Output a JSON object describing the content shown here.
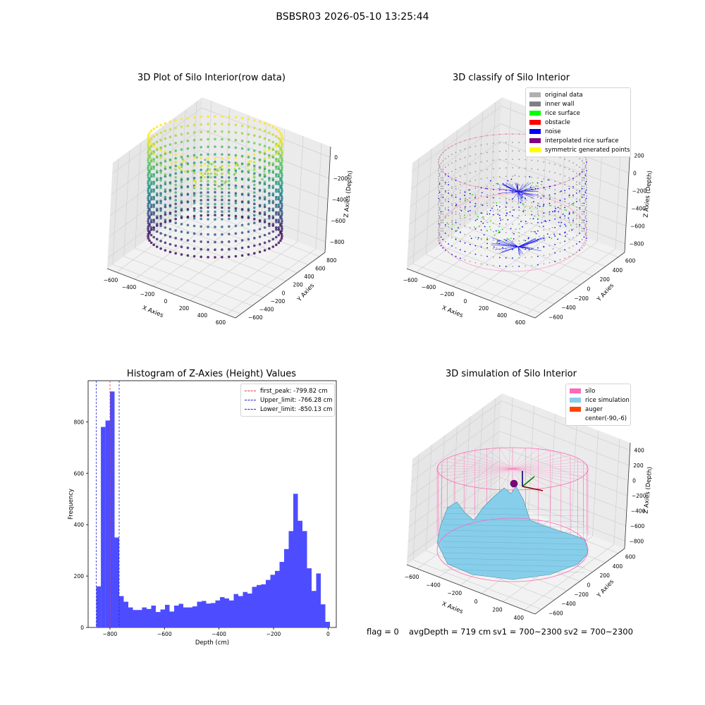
{
  "suptitle": "BSBSR03 2026-05-10 13:25:44",
  "status": {
    "flag": "flag = 0",
    "avg_depth": "avgDepth = 719 cm",
    "sv1": "sv1 = 700~2300",
    "sv2": "sv2 = 700~2300"
  },
  "colors": {
    "histogram_bar": "#4d4dff",
    "peak_line": "#e23c3c",
    "limit_line": "#2222cc",
    "silo": "#ff69b4",
    "rice_simulation": "#87ceeb",
    "auger": "#ff4500"
  },
  "chart_data": [
    {
      "type": "scatter",
      "title": "3D Plot of Silo Interior(row data)",
      "xlabel": "X Axies",
      "ylabel": "Y Axies",
      "zlabel": "Z Axies (Depth)",
      "x_ticks": [
        "−600",
        "−400",
        "−200",
        "0",
        "200",
        "400",
        "600"
      ],
      "y_ticks": [
        "−600",
        "−400",
        "−200",
        "0",
        "200",
        "400",
        "600",
        "800"
      ],
      "z_ticks": [
        "0",
        "−200",
        "−400",
        "−600",
        "−800"
      ],
      "colormap": "viridis"
    },
    {
      "type": "scatter",
      "title": "3D classify of Silo Interior",
      "xlabel": "X Axies",
      "ylabel": "Y Axies",
      "zlabel": "Z Axies (Depth)",
      "x_ticks": [
        "−600",
        "−400",
        "−200",
        "0",
        "200",
        "400",
        "600"
      ],
      "y_ticks": [
        "−600",
        "−400",
        "−200",
        "0",
        "200",
        "400",
        "600"
      ],
      "z_ticks": [
        "200",
        "0",
        "−200",
        "−400",
        "−600",
        "−800"
      ],
      "legend_placement": "top-right",
      "legend": [
        {
          "label": "original data",
          "color": "#b0b0b0"
        },
        {
          "label": "inner wall",
          "color": "#808080"
        },
        {
          "label": "rice surface",
          "color": "#00ff00"
        },
        {
          "label": "obstacle",
          "color": "#ff0000"
        },
        {
          "label": "noise",
          "color": "#0000ff"
        },
        {
          "label": "interpolated rice surface",
          "color": "#800080"
        },
        {
          "label": "symmetric generated points",
          "color": "#ffff00"
        }
      ]
    },
    {
      "type": "bar",
      "title": "Histogram of Z-Axies (Height) Values",
      "xlabel": "Depth (cm)",
      "ylabel": "Frequency",
      "xlim": [
        -880,
        30
      ],
      "ylim": [
        0,
        960
      ],
      "x_ticks": [
        -800,
        -600,
        -400,
        -200,
        0
      ],
      "x_tick_labels": [
        "−800",
        "−600",
        "−400",
        "−200",
        "0"
      ],
      "y_ticks": [
        0,
        200,
        400,
        600,
        800
      ],
      "bin_start": -850.13,
      "bin_width": 16.8,
      "values": [
        160,
        780,
        805,
        918,
        350,
        122,
        100,
        78,
        68,
        68,
        78,
        72,
        85,
        60,
        70,
        88,
        62,
        85,
        92,
        78,
        78,
        82,
        100,
        103,
        93,
        95,
        105,
        118,
        113,
        105,
        130,
        122,
        138,
        132,
        158,
        165,
        168,
        185,
        205,
        220,
        255,
        305,
        375,
        520,
        415,
        375,
        230,
        142,
        210,
        90,
        22
      ],
      "lines": [
        {
          "label": "first_peak: -799.82 cm",
          "x": -799.82,
          "color": "#e23c3c"
        },
        {
          "label": "Upper_limit: -766.28 cm",
          "x": -766.28,
          "color": "#2222cc"
        },
        {
          "label": "Lower_limit: -850.13 cm",
          "x": -850.13,
          "color": "#2222cc"
        }
      ],
      "legend_placement": "top-right"
    },
    {
      "type": "area",
      "title": "3D simulation of Silo Interior",
      "xlabel": "X Axies",
      "ylabel": "Y Axies",
      "zlabel": "Z Axies (Depth)",
      "x_ticks": [
        "−600",
        "−400",
        "−200",
        "0",
        "200",
        "400"
      ],
      "y_ticks": [
        "−600",
        "−400",
        "−200",
        "0",
        "200",
        "400",
        "600"
      ],
      "z_ticks": [
        "400",
        "200",
        "0",
        "−200",
        "−400",
        "−600",
        "−800"
      ],
      "legend_placement": "top-right",
      "legend": [
        {
          "label": "silo",
          "color": "#ff69b4"
        },
        {
          "label": "rice simulation",
          "color": "#87ceeb"
        },
        {
          "label": "auger",
          "color": "#ff4500"
        },
        {
          "label": "center(-90,-6)",
          "color": ""
        }
      ]
    }
  ]
}
